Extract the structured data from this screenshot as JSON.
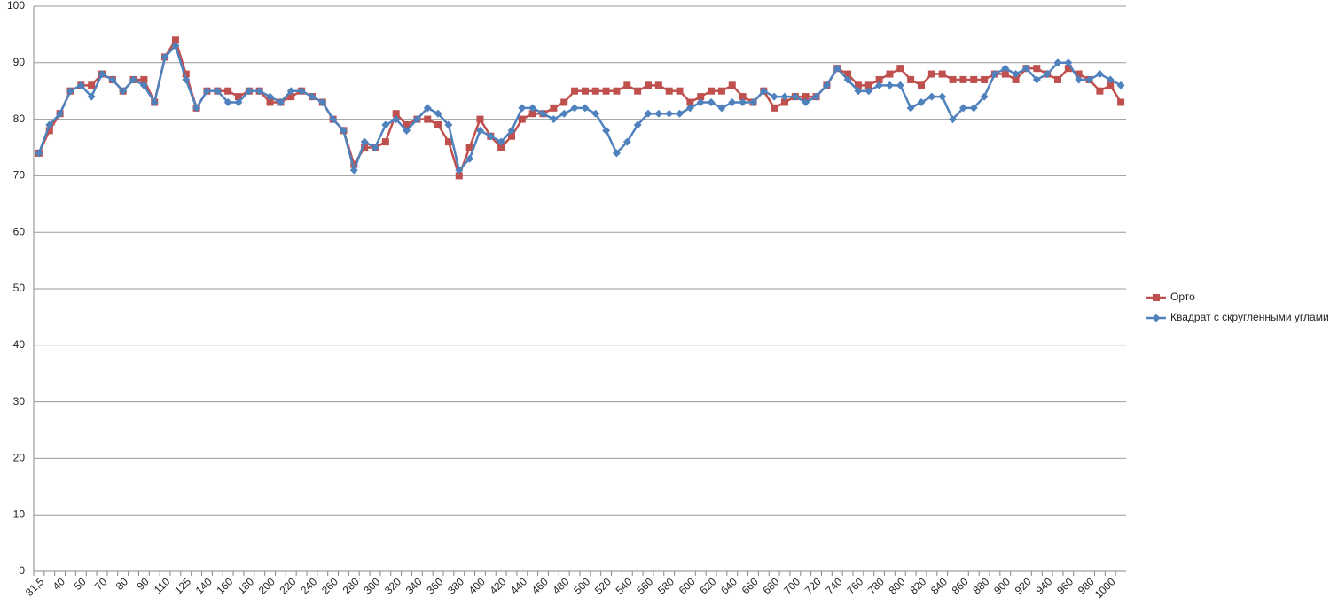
{
  "chart_data": {
    "type": "line",
    "categories": [
      "31,5",
      null,
      "40",
      null,
      "50",
      null,
      "70",
      null,
      "80",
      null,
      "90",
      null,
      "110",
      null,
      "125",
      null,
      "140",
      null,
      "160",
      null,
      "180",
      null,
      "200",
      null,
      "220",
      null,
      "240",
      null,
      "260",
      null,
      "280",
      null,
      "300",
      null,
      "320",
      null,
      "340",
      null,
      "360",
      null,
      "380",
      null,
      "400",
      null,
      "420",
      null,
      "440",
      null,
      "460",
      null,
      "480",
      null,
      "500",
      null,
      "520",
      null,
      "540",
      null,
      "560",
      null,
      "580",
      null,
      "600",
      null,
      "620",
      null,
      "640",
      null,
      "660",
      null,
      "680",
      null,
      "700",
      null,
      "720",
      null,
      "740",
      null,
      "760",
      null,
      "780",
      null,
      "800",
      null,
      "820",
      null,
      "840",
      null,
      "860",
      null,
      "880",
      null,
      "900",
      null,
      "920",
      null,
      "940",
      null,
      "960",
      null,
      "980",
      null,
      "1000",
      null
    ],
    "series": [
      {
        "name": "Орто",
        "color": "#c0504d",
        "marker": "square",
        "values": [
          74,
          78,
          81,
          85,
          86,
          86,
          88,
          87,
          85,
          87,
          87,
          83,
          91,
          94,
          88,
          82,
          85,
          85,
          85,
          84,
          85,
          85,
          83,
          83,
          84,
          85,
          84,
          83,
          80,
          78,
          72,
          75,
          75,
          76,
          81,
          79,
          80,
          80,
          79,
          76,
          70,
          75,
          80,
          77,
          75,
          77,
          80,
          81,
          81,
          82,
          83,
          85,
          85,
          85,
          85,
          85,
          86,
          85,
          86,
          86,
          85,
          85,
          83,
          84,
          85,
          85,
          86,
          84,
          83,
          85,
          82,
          83,
          84,
          84,
          84,
          86,
          89,
          88,
          86,
          86,
          87,
          88,
          89,
          87,
          86,
          88,
          88,
          87,
          87,
          87,
          87,
          88,
          88,
          87,
          89,
          89,
          88,
          87,
          89,
          88,
          87,
          85,
          86,
          83
        ]
      },
      {
        "name": "Квадрат с скругленными углами",
        "color": "#4f81bd",
        "marker": "diamond",
        "values": [
          74,
          79,
          81,
          85,
          86,
          84,
          88,
          87,
          85,
          87,
          86,
          83,
          91,
          93,
          87,
          82,
          85,
          85,
          83,
          83,
          85,
          85,
          84,
          83,
          85,
          85,
          84,
          83,
          80,
          78,
          71,
          76,
          75,
          79,
          80,
          78,
          80,
          82,
          81,
          79,
          71,
          73,
          78,
          77,
          76,
          78,
          82,
          82,
          81,
          80,
          81,
          82,
          82,
          81,
          78,
          74,
          76,
          79,
          81,
          81,
          81,
          81,
          82,
          83,
          83,
          82,
          83,
          83,
          83,
          85,
          84,
          84,
          84,
          83,
          84,
          86,
          89,
          87,
          85,
          85,
          86,
          86,
          86,
          82,
          83,
          84,
          84,
          80,
          82,
          82,
          84,
          88,
          89,
          88,
          89,
          87,
          88,
          90,
          90,
          87,
          87,
          88,
          87,
          86
        ]
      }
    ],
    "ylim": [
      0,
      100
    ],
    "yticks": [
      0,
      10,
      20,
      30,
      40,
      50,
      60,
      70,
      80,
      90,
      100
    ],
    "grid": true,
    "legend": "right"
  }
}
